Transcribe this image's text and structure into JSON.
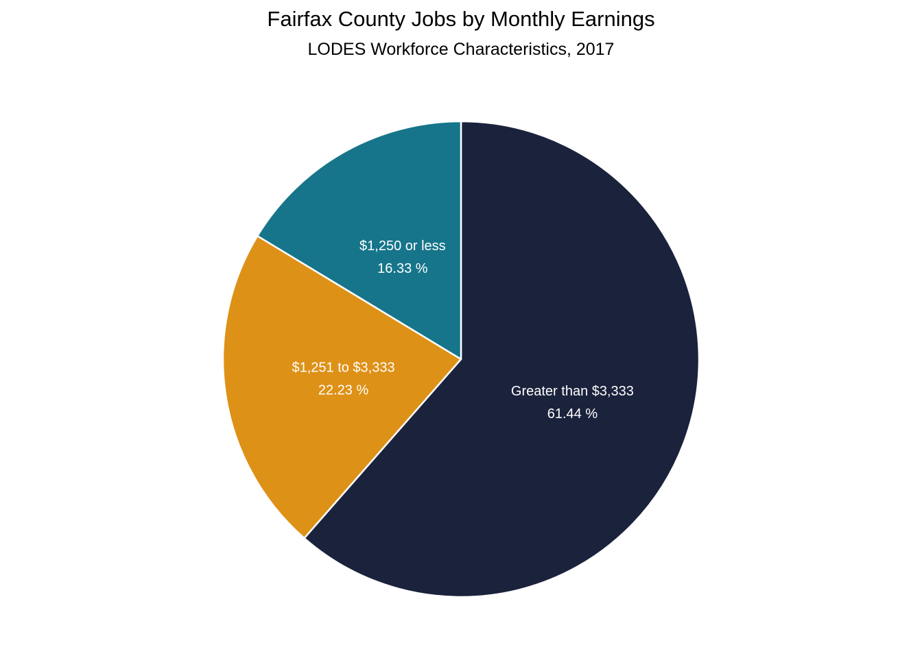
{
  "chart_data": {
    "type": "pie",
    "title": "Fairfax County Jobs by Monthly Earnings",
    "subtitle": "LODES Workforce Characteristics, 2017",
    "slices": [
      {
        "label": "Greater than $3,333",
        "value": 61.44,
        "value_label": "61.44 %",
        "color": "#1b223c"
      },
      {
        "label": "$1,251 to $3,333",
        "value": 22.23,
        "value_label": "22.23 %",
        "color": "#de9117"
      },
      {
        "label": "$1,250 or less",
        "value": 16.33,
        "value_label": "16.33 %",
        "color": "#16758a"
      }
    ],
    "start": "12 o'clock",
    "direction": "clockwise",
    "slice_border_color": "#ffffff",
    "legend": "none"
  }
}
